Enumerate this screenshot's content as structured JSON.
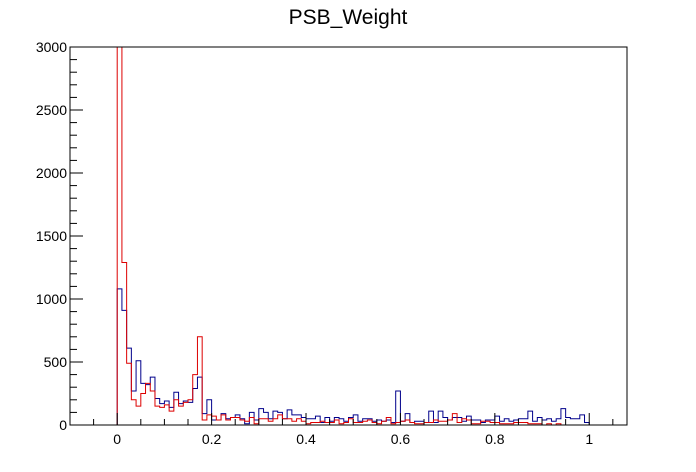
{
  "chart_data": {
    "type": "histogram",
    "title": "PSB_Weight",
    "xlabel": "",
    "ylabel": "",
    "xlim": [
      -0.1,
      1.08
    ],
    "ylim": [
      0,
      3000
    ],
    "grid": false,
    "legend": "none",
    "x_ticks": [
      {
        "value": 0,
        "label": "0"
      },
      {
        "value": 0.2,
        "label": "0.2"
      },
      {
        "value": 0.4,
        "label": "0.4"
      },
      {
        "value": 0.6,
        "label": "0.6"
      },
      {
        "value": 0.8,
        "label": "0.8"
      },
      {
        "value": 1,
        "label": "1"
      }
    ],
    "y_ticks": [
      {
        "value": 0,
        "label": "0"
      },
      {
        "value": 500,
        "label": "500"
      },
      {
        "value": 1000,
        "label": "1000"
      },
      {
        "value": 1500,
        "label": "1500"
      },
      {
        "value": 2000,
        "label": "2000"
      },
      {
        "value": 2500,
        "label": "2500"
      },
      {
        "value": 3000,
        "label": "3000"
      }
    ],
    "bin_start": 0,
    "bin_width": 0.01,
    "series": [
      {
        "color": "#00008b",
        "values": [
          1080,
          910,
          610,
          270,
          510,
          330,
          320,
          380,
          210,
          170,
          190,
          140,
          260,
          170,
          190,
          180,
          290,
          380,
          90,
          200,
          40,
          40,
          90,
          50,
          60,
          80,
          50,
          10,
          100,
          40,
          130,
          100,
          50,
          110,
          100,
          50,
          120,
          80,
          80,
          60,
          50,
          50,
          70,
          20,
          60,
          30,
          60,
          50,
          30,
          60,
          80,
          30,
          50,
          50,
          30,
          40,
          30,
          40,
          20,
          270,
          30,
          90,
          20,
          30,
          30,
          20,
          110,
          20,
          110,
          60,
          40,
          60,
          60,
          30,
          70,
          40,
          40,
          20,
          40,
          40,
          70,
          30,
          50,
          30,
          40,
          50,
          50,
          110,
          30,
          60,
          40,
          50,
          30,
          50,
          130,
          60,
          50,
          50,
          80,
          20
        ]
      },
      {
        "color": "#dd0000",
        "values": [
          3000,
          1290,
          490,
          200,
          150,
          250,
          330,
          270,
          150,
          140,
          160,
          110,
          200,
          150,
          180,
          200,
          400,
          700,
          40,
          80,
          70,
          40,
          80,
          40,
          60,
          60,
          40,
          30,
          60,
          10,
          50,
          50,
          30,
          50,
          80,
          50,
          50,
          30,
          50,
          30,
          10,
          20,
          20,
          30,
          20,
          20,
          40,
          10,
          20,
          50,
          20,
          20,
          30,
          40,
          20,
          10,
          30,
          60,
          10,
          20,
          30,
          40,
          20,
          10,
          10,
          20,
          20,
          40,
          30,
          30,
          40,
          90,
          20,
          50,
          40,
          10,
          10,
          30,
          30,
          20,
          20,
          10,
          10,
          10,
          20,
          20,
          20,
          10,
          10,
          10,
          0,
          10,
          0,
          10,
          0,
          0,
          0,
          0,
          0,
          0
        ]
      }
    ]
  }
}
